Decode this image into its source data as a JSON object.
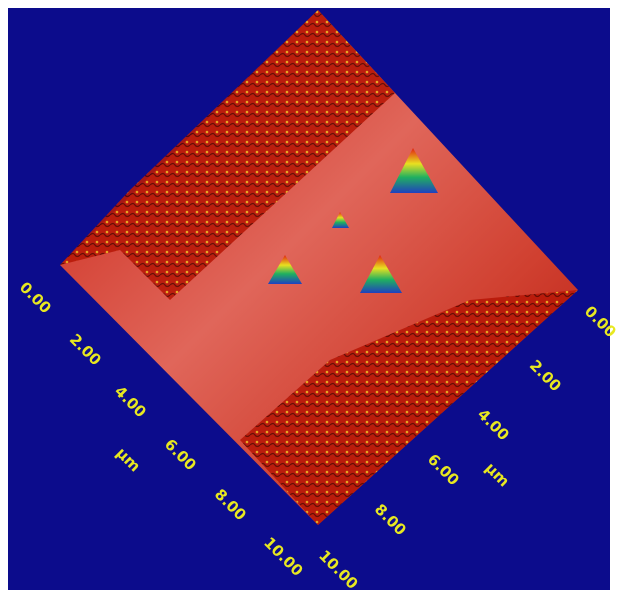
{
  "left_axis": {
    "unit": "µm",
    "ticks": [
      "0.00",
      "2.00",
      "4.00",
      "6.00",
      "8.00",
      "10.00"
    ]
  },
  "right_axis": {
    "unit": "µm",
    "ticks": [
      "0.00",
      "2.00",
      "4.00",
      "6.00",
      "8.00",
      "10.00"
    ]
  }
}
